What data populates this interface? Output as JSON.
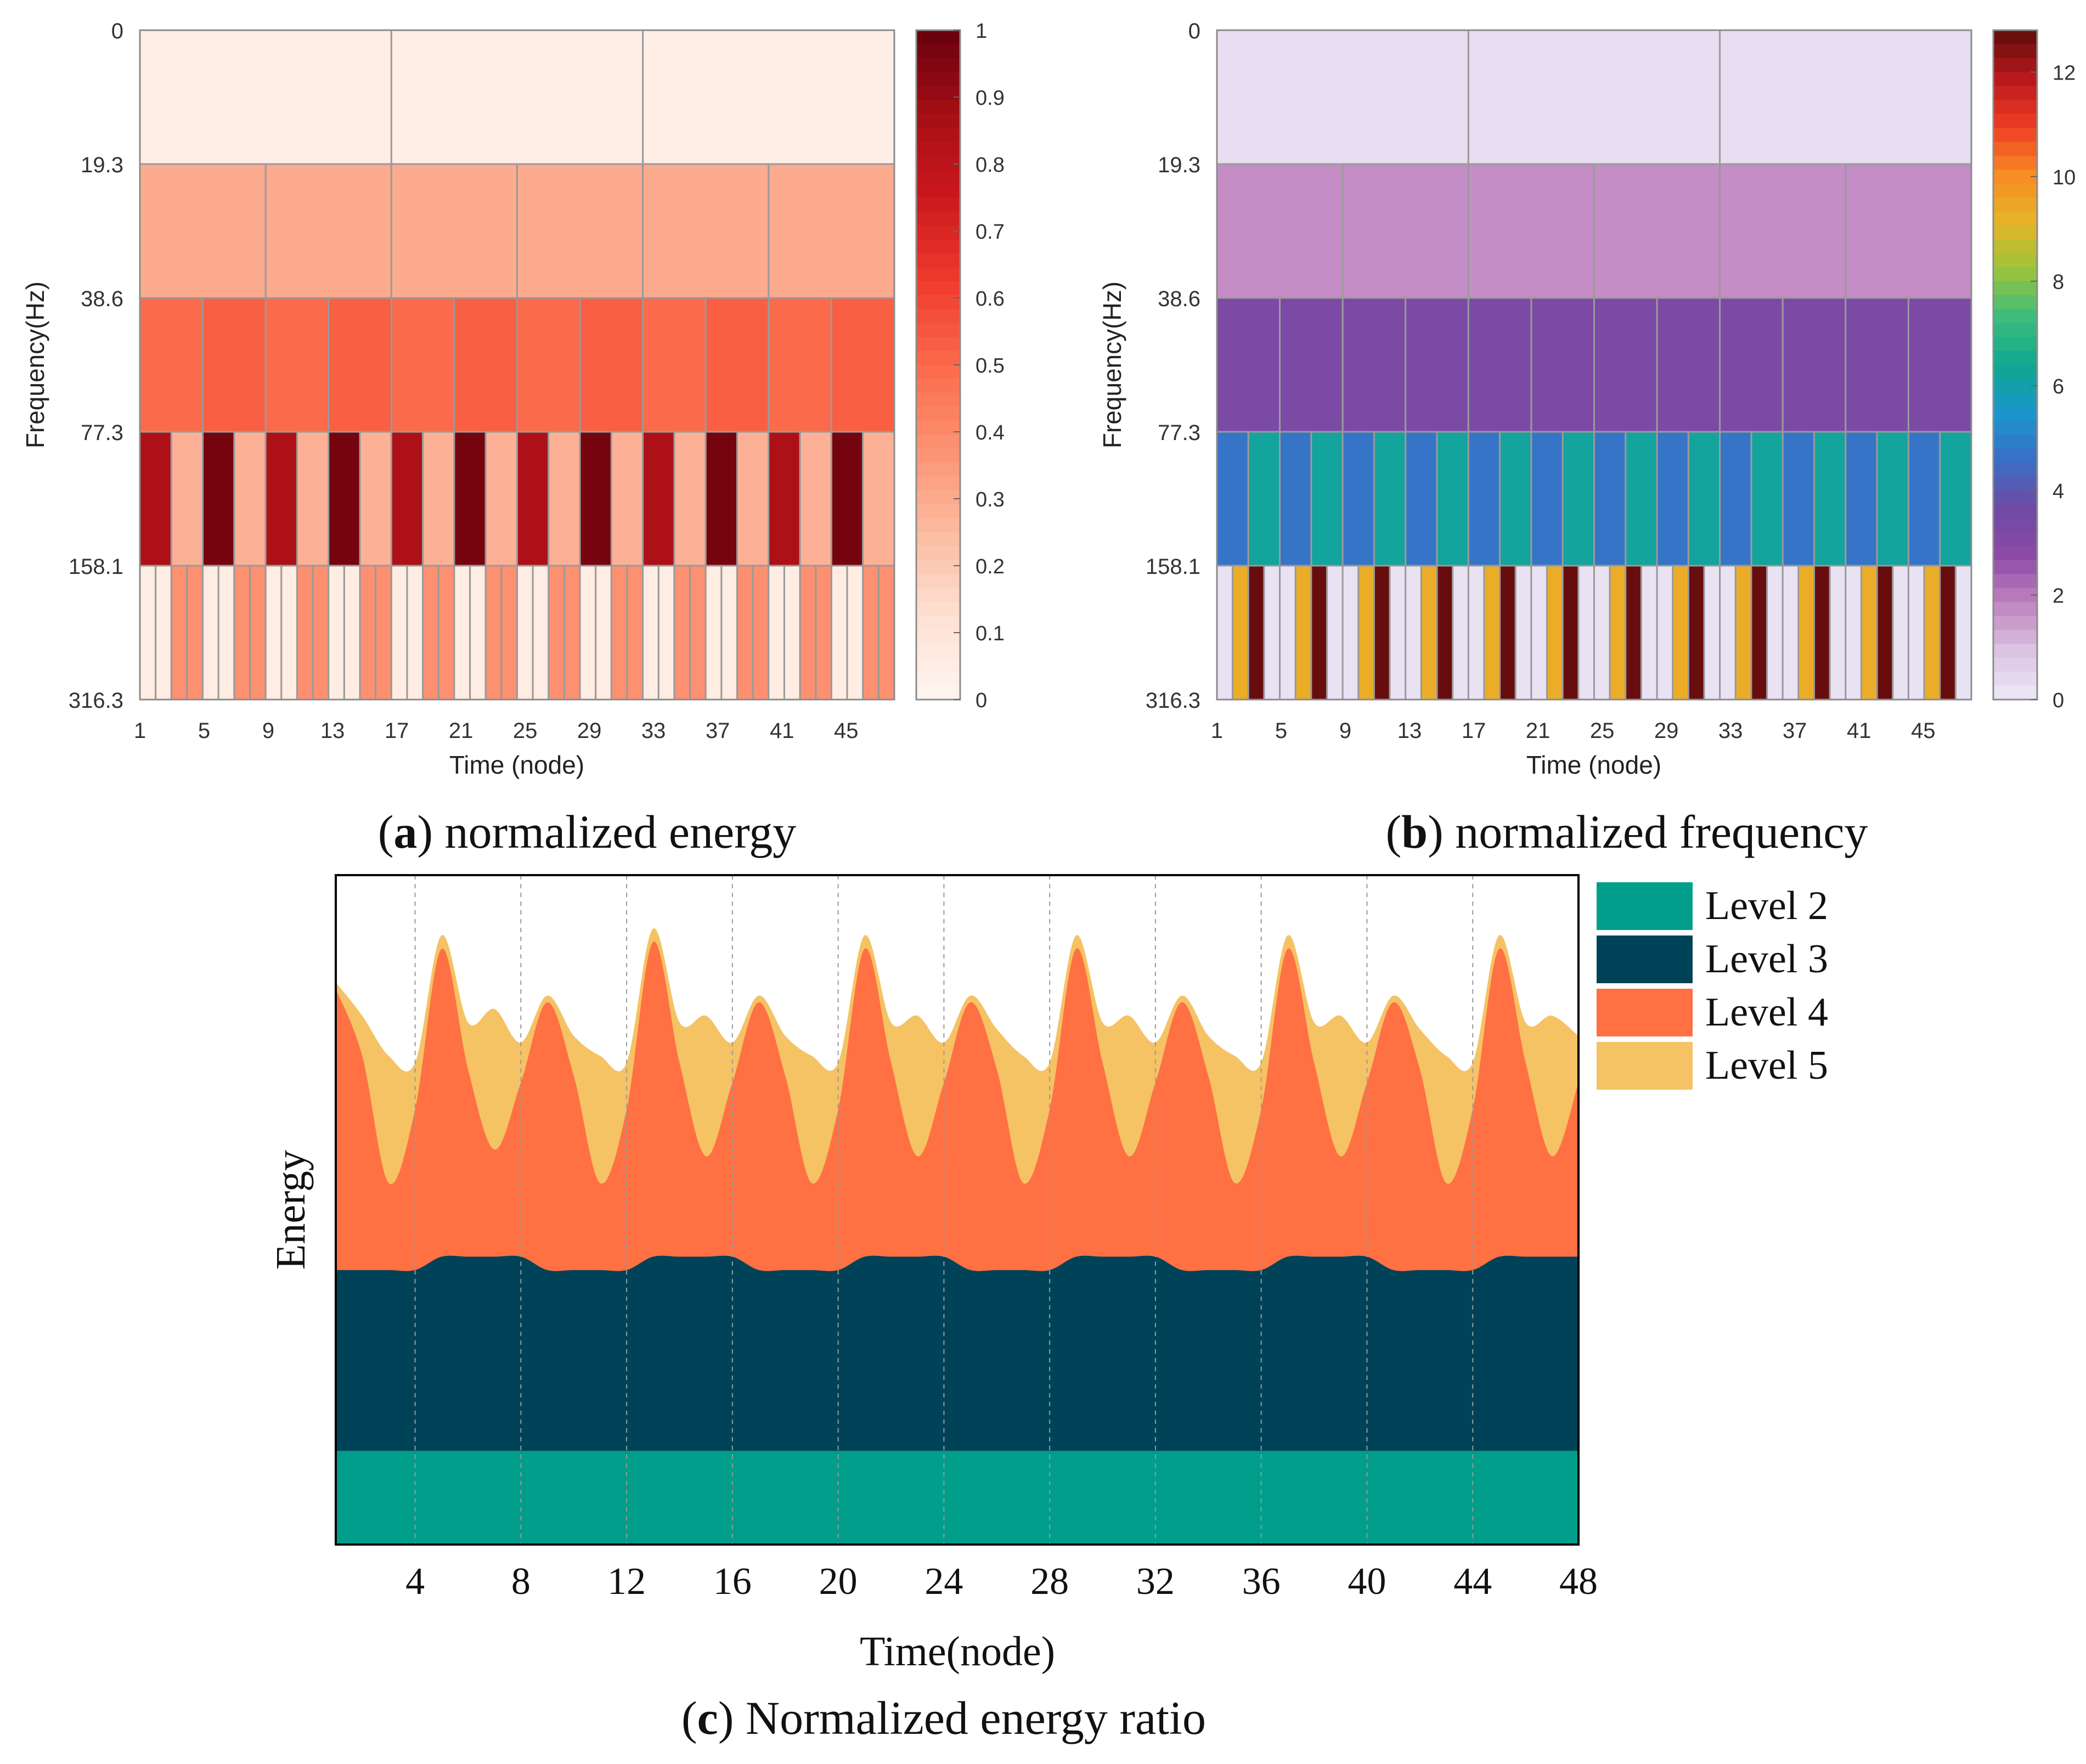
{
  "panels": {
    "a": {
      "letter": "a",
      "caption": "normalized energy"
    },
    "b": {
      "letter": "b",
      "caption": "normalized frequency"
    },
    "c": {
      "letter": "c",
      "caption": "Normalized energy ratio"
    }
  },
  "chart_data": [
    {
      "type": "heatmap",
      "panel": "a",
      "xlabel": "Time (node)",
      "ylabel": "Frequency(Hz)",
      "x_ticks": [
        "1",
        "5",
        "9",
        "13",
        "17",
        "21",
        "25",
        "29",
        "33",
        "37",
        "41",
        "45"
      ],
      "y_ticks": [
        "0",
        "19.3",
        "38.6",
        "77.3",
        "158.1",
        "316.3"
      ],
      "colorbar": {
        "min": 0,
        "max": 1,
        "ticks": [
          "0",
          "0.1",
          "0.2",
          "0.3",
          "0.4",
          "0.5",
          "0.6",
          "0.7",
          "0.8",
          "0.9",
          "1"
        ],
        "colors": [
          "#fff5f0",
          "#fee0d2",
          "#fcbba1",
          "#fc9272",
          "#fb6a4a",
          "#ef3b2c",
          "#cb181d",
          "#a50f15",
          "#67000d"
        ]
      },
      "rows": [
        {
          "band": "0-19.3",
          "values": [
            0.04,
            0.04,
            0.04
          ]
        },
        {
          "band": "19.3-38.6",
          "values": [
            0.3,
            0.3,
            0.3,
            0.3,
            0.3,
            0.3
          ]
        },
        {
          "band": "38.6-77.3",
          "values": [
            0.5,
            0.53,
            0.5,
            0.53,
            0.5,
            0.53,
            0.5,
            0.53,
            0.5,
            0.53,
            0.5,
            0.53
          ]
        },
        {
          "band": "77.3-158.1",
          "values": [
            0.85,
            0.28,
            0.97,
            0.28,
            0.85,
            0.28,
            0.97,
            0.28,
            0.85,
            0.28,
            0.97,
            0.28,
            0.85,
            0.28,
            0.97,
            0.28,
            0.85,
            0.28,
            0.97,
            0.28,
            0.85,
            0.28,
            0.97,
            0.28
          ]
        },
        {
          "band": "158.1-316.3",
          "values": [
            0.05,
            0.05,
            0.38,
            0.38,
            0.05,
            0.05,
            0.38,
            0.38,
            0.05,
            0.05,
            0.38,
            0.38,
            0.05,
            0.05,
            0.38,
            0.38,
            0.05,
            0.05,
            0.38,
            0.38,
            0.05,
            0.05,
            0.38,
            0.38,
            0.05,
            0.05,
            0.38,
            0.38,
            0.05,
            0.05,
            0.38,
            0.38,
            0.05,
            0.05,
            0.38,
            0.38,
            0.05,
            0.05,
            0.38,
            0.38,
            0.05,
            0.05,
            0.38,
            0.38,
            0.05,
            0.05,
            0.38,
            0.38
          ]
        }
      ]
    },
    {
      "type": "heatmap",
      "panel": "b",
      "xlabel": "Time (node)",
      "ylabel": "Frequency(Hz)",
      "x_ticks": [
        "1",
        "5",
        "9",
        "13",
        "17",
        "21",
        "25",
        "29",
        "33",
        "37",
        "41",
        "45"
      ],
      "y_ticks": [
        "0",
        "19.3",
        "38.6",
        "77.3",
        "158.1",
        "316.3"
      ],
      "colorbar": {
        "min": 0,
        "max": 12.8,
        "ticks": [
          "0",
          "2",
          "4",
          "6",
          "8",
          "10",
          "12"
        ],
        "colors": [
          "#eceaf8",
          "#dcc4e2",
          "#c084c0",
          "#8e4aa6",
          "#6e4aa4",
          "#3a6ec6",
          "#1a96cc",
          "#10a890",
          "#3cbc7c",
          "#9cc43c",
          "#e8b428",
          "#f88a24",
          "#ee3c24",
          "#b8181c",
          "#5e0c0c"
        ]
      },
      "rows": [
        {
          "band": "0-19.3",
          "values": [
            0.3,
            0.3,
            0.3
          ]
        },
        {
          "band": "19.3-38.6",
          "values": [
            1.7,
            1.7,
            1.7,
            1.7,
            1.7,
            1.7
          ]
        },
        {
          "band": "38.6-77.3",
          "values": [
            3.3,
            3.3,
            3.3,
            3.3,
            3.3,
            3.3,
            3.3,
            3.3,
            3.3,
            3.3,
            3.3,
            3.3
          ]
        },
        {
          "band": "77.3-158.1",
          "values": [
            4.7,
            6.2,
            4.7,
            6.2,
            4.7,
            6.2,
            4.7,
            6.2,
            4.7,
            6.2,
            4.7,
            6.2,
            4.7,
            6.2,
            4.7,
            6.2,
            4.7,
            6.2,
            4.7,
            6.2,
            4.7,
            6.2,
            4.7,
            6.2
          ]
        },
        {
          "band": "158.1-316.3",
          "values": [
            0.2,
            9.3,
            12.7,
            0.2,
            0.2,
            9.3,
            12.7,
            0.2,
            0.2,
            9.3,
            12.7,
            0.2,
            0.2,
            9.3,
            12.7,
            0.2,
            0.2,
            9.3,
            12.7,
            0.2,
            0.2,
            9.3,
            12.7,
            0.2,
            0.2,
            9.3,
            12.7,
            0.2,
            0.2,
            9.3,
            12.7,
            0.2,
            0.2,
            9.3,
            12.7,
            0.2,
            0.2,
            9.3,
            12.7,
            0.2,
            0.2,
            9.3,
            12.7,
            0.2,
            0.2,
            9.3,
            12.7,
            0.2
          ]
        }
      ]
    },
    {
      "type": "area",
      "panel": "c",
      "stacked": true,
      "xlabel": "Time(node)",
      "ylabel": "Energy",
      "xlim": [
        1,
        48
      ],
      "x_ticks": [
        4,
        8,
        12,
        16,
        20,
        24,
        28,
        32,
        36,
        40,
        44,
        48
      ],
      "ylim": [
        0,
        1
      ],
      "grid": "vertical dashed at x ticks",
      "legend_position": "right",
      "x": [
        1,
        2,
        3,
        4,
        5,
        6,
        7,
        8,
        9,
        10,
        11,
        12,
        13,
        14,
        15,
        16,
        17,
        18,
        19,
        20,
        21,
        22,
        23,
        24,
        25,
        26,
        27,
        28,
        29,
        30,
        31,
        32,
        33,
        34,
        35,
        36,
        37,
        38,
        39,
        40,
        41,
        42,
        43,
        44,
        45,
        46,
        47,
        48
      ],
      "series": [
        {
          "name": "Level 2",
          "color": "#009e8b",
          "values": [
            0.14,
            0.14,
            0.14,
            0.14,
            0.14,
            0.14,
            0.14,
            0.14,
            0.14,
            0.14,
            0.14,
            0.14,
            0.14,
            0.14,
            0.14,
            0.14,
            0.14,
            0.14,
            0.14,
            0.14,
            0.14,
            0.14,
            0.14,
            0.14,
            0.14,
            0.14,
            0.14,
            0.14,
            0.14,
            0.14,
            0.14,
            0.14,
            0.14,
            0.14,
            0.14,
            0.14,
            0.14,
            0.14,
            0.14,
            0.14,
            0.14,
            0.14,
            0.14,
            0.14,
            0.14,
            0.14,
            0.14,
            0.14
          ]
        },
        {
          "name": "Level 3",
          "color": "#004358",
          "values": [
            0.27,
            0.27,
            0.27,
            0.27,
            0.29,
            0.29,
            0.29,
            0.29,
            0.27,
            0.27,
            0.27,
            0.27,
            0.29,
            0.29,
            0.29,
            0.29,
            0.27,
            0.27,
            0.27,
            0.27,
            0.29,
            0.29,
            0.29,
            0.29,
            0.27,
            0.27,
            0.27,
            0.27,
            0.29,
            0.29,
            0.29,
            0.29,
            0.27,
            0.27,
            0.27,
            0.27,
            0.29,
            0.29,
            0.29,
            0.29,
            0.27,
            0.27,
            0.27,
            0.27,
            0.29,
            0.29,
            0.29,
            0.29
          ]
        },
        {
          "name": "Level 4",
          "color": "#ff7043",
          "values": [
            0.42,
            0.32,
            0.13,
            0.24,
            0.46,
            0.28,
            0.16,
            0.26,
            0.4,
            0.29,
            0.13,
            0.24,
            0.47,
            0.29,
            0.15,
            0.26,
            0.4,
            0.29,
            0.13,
            0.24,
            0.46,
            0.29,
            0.15,
            0.26,
            0.4,
            0.3,
            0.13,
            0.24,
            0.46,
            0.29,
            0.15,
            0.26,
            0.4,
            0.29,
            0.13,
            0.24,
            0.46,
            0.29,
            0.15,
            0.26,
            0.4,
            0.3,
            0.13,
            0.24,
            0.46,
            0.29,
            0.15,
            0.26
          ]
        },
        {
          "name": "Level 5",
          "color": "#f5c264",
          "values": [
            0.01,
            0.06,
            0.19,
            0.07,
            0.02,
            0.07,
            0.21,
            0.06,
            0.01,
            0.06,
            0.19,
            0.07,
            0.02,
            0.06,
            0.21,
            0.06,
            0.01,
            0.06,
            0.19,
            0.07,
            0.02,
            0.06,
            0.21,
            0.06,
            0.01,
            0.06,
            0.19,
            0.07,
            0.02,
            0.06,
            0.21,
            0.06,
            0.01,
            0.06,
            0.19,
            0.07,
            0.02,
            0.06,
            0.21,
            0.06,
            0.01,
            0.06,
            0.19,
            0.07,
            0.02,
            0.06,
            0.21,
            0.07
          ]
        }
      ]
    }
  ]
}
